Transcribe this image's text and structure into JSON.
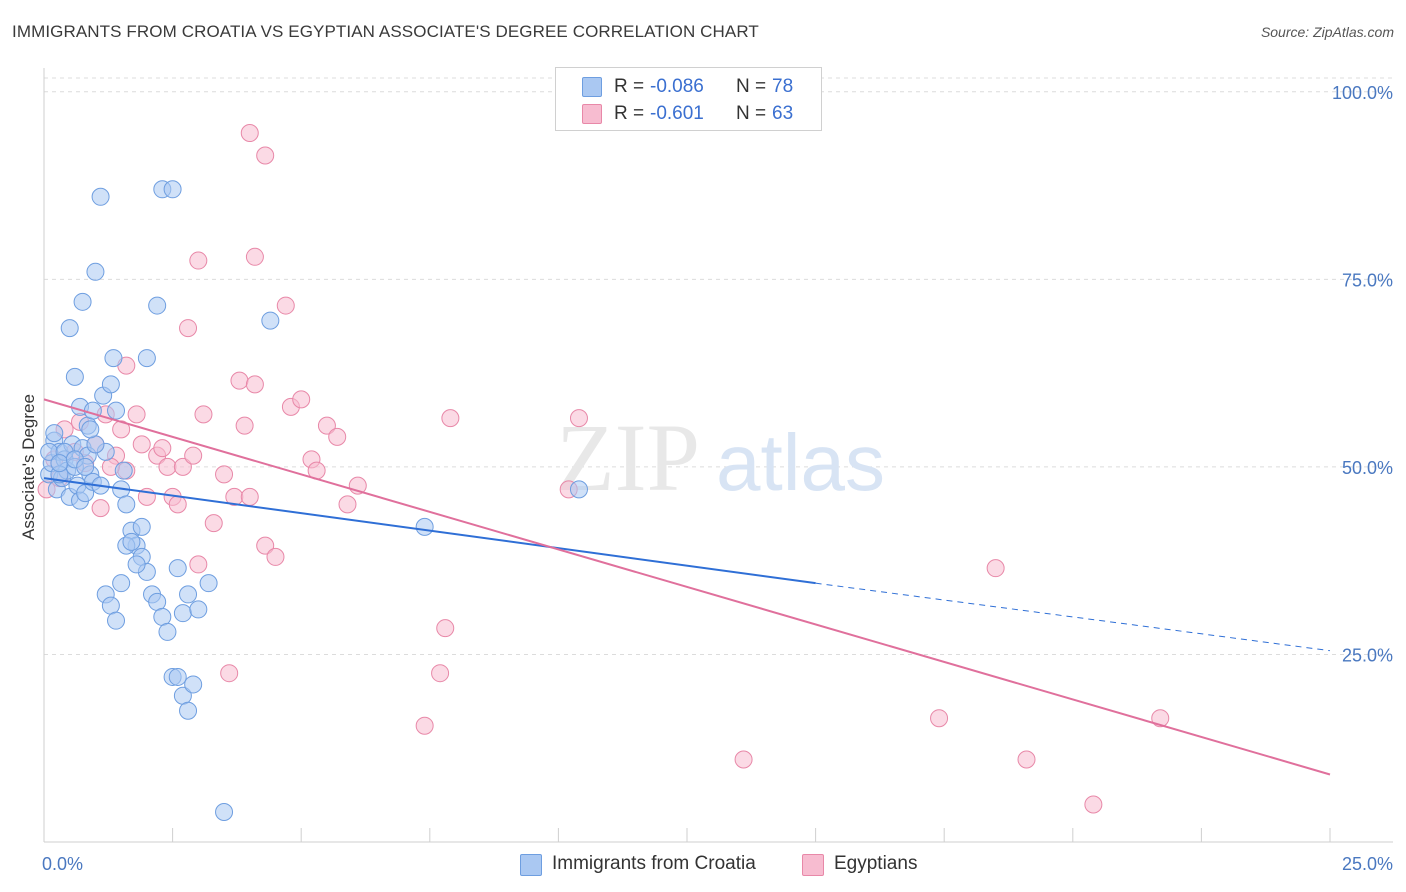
{
  "header": {
    "title": "IMMIGRANTS FROM CROATIA VS EGYPTIAN ASSOCIATE'S DEGREE CORRELATION CHART",
    "source": "Source: ZipAtlas.com"
  },
  "watermark": {
    "zip": "ZIP",
    "atlas": "atlas"
  },
  "legend": {
    "rows": [
      {
        "r_label": "R =",
        "r_value": "-0.086",
        "n_label": "N =",
        "n_value": "78",
        "color": "#aac8f2",
        "border": "#6e9ee0"
      },
      {
        "r_label": "R =",
        "r_value": "-0.601",
        "n_label": "N =",
        "n_value": "63",
        "color": "#f7bcd0",
        "border": "#e888a8"
      }
    ]
  },
  "bottom_legend": {
    "croatia": "Immigrants from Croatia",
    "egyptians": "Egyptians"
  },
  "chart_data": {
    "type": "scatter",
    "title": "IMMIGRANTS FROM CROATIA VS EGYPTIAN ASSOCIATE'S DEGREE CORRELATION CHART",
    "xlabel": "",
    "ylabel": "Associate's Degree",
    "xlim": [
      0,
      25
    ],
    "ylim": [
      0,
      100
    ],
    "x_ticks": [
      "0.0%",
      "25.0%"
    ],
    "y_ticks": [
      "25.0%",
      "50.0%",
      "75.0%",
      "100.0%"
    ],
    "y_tick_values": [
      25,
      50,
      75,
      100
    ],
    "grid": true,
    "legend_position": "top-center",
    "series": [
      {
        "name": "Immigrants from Croatia",
        "color": "#6e9ee0",
        "fill": "#aac8f2",
        "trend": {
          "x": [
            0,
            15
          ],
          "y": [
            48.5,
            34.5
          ],
          "dashed_to": [
            25,
            25.5
          ]
        },
        "points": [
          [
            0.1,
            49
          ],
          [
            0.15,
            50.5
          ],
          [
            0.2,
            53.5
          ],
          [
            0.25,
            47
          ],
          [
            0.3,
            52
          ],
          [
            0.35,
            48.5
          ],
          [
            0.4,
            51
          ],
          [
            0.45,
            49.5
          ],
          [
            0.5,
            46
          ],
          [
            0.55,
            53
          ],
          [
            0.6,
            50
          ],
          [
            0.65,
            47.5
          ],
          [
            0.7,
            45.5
          ],
          [
            0.75,
            52.5
          ],
          [
            0.8,
            46.5
          ],
          [
            0.85,
            51.5
          ],
          [
            0.9,
            49
          ],
          [
            0.95,
            48
          ],
          [
            0.1,
            52
          ],
          [
            0.2,
            54.5
          ],
          [
            0.3,
            49
          ],
          [
            0.5,
            68.5
          ],
          [
            0.6,
            62
          ],
          [
            0.7,
            58
          ],
          [
            0.75,
            72
          ],
          [
            0.85,
            55.5
          ],
          [
            0.95,
            57.5
          ],
          [
            1.0,
            76
          ],
          [
            1.1,
            86
          ],
          [
            1.15,
            59.5
          ],
          [
            1.2,
            52
          ],
          [
            1.3,
            61
          ],
          [
            1.35,
            64.5
          ],
          [
            1.4,
            57.5
          ],
          [
            1.5,
            47
          ],
          [
            1.55,
            49.5
          ],
          [
            1.6,
            45
          ],
          [
            1.7,
            41.5
          ],
          [
            1.8,
            39.5
          ],
          [
            1.9,
            38
          ],
          [
            2.0,
            36
          ],
          [
            2.1,
            33
          ],
          [
            2.2,
            32
          ],
          [
            2.3,
            30
          ],
          [
            2.4,
            28
          ],
          [
            2.5,
            22
          ],
          [
            2.6,
            22
          ],
          [
            2.7,
            19.5
          ],
          [
            2.8,
            17.5
          ],
          [
            2.9,
            21
          ],
          [
            1.2,
            33
          ],
          [
            1.3,
            31.5
          ],
          [
            1.4,
            29.5
          ],
          [
            1.5,
            34.5
          ],
          [
            1.6,
            39.5
          ],
          [
            1.7,
            40
          ],
          [
            1.8,
            37
          ],
          [
            1.9,
            42
          ],
          [
            2.0,
            64.5
          ],
          [
            2.2,
            71.5
          ],
          [
            2.3,
            87
          ],
          [
            2.5,
            87
          ],
          [
            2.6,
            36.5
          ],
          [
            2.7,
            30.5
          ],
          [
            2.8,
            33
          ],
          [
            3.0,
            31
          ],
          [
            3.2,
            34.5
          ],
          [
            3.5,
            4
          ],
          [
            4.4,
            69.5
          ],
          [
            7.4,
            42
          ],
          [
            10.4,
            47
          ],
          [
            0.4,
            52
          ],
          [
            0.3,
            50.5
          ],
          [
            0.6,
            51
          ],
          [
            1.0,
            53
          ],
          [
            1.1,
            47.5
          ],
          [
            0.9,
            55
          ],
          [
            0.8,
            50
          ]
        ]
      },
      {
        "name": "Egyptians",
        "color": "#e888a8",
        "fill": "#f7bcd0",
        "trend": {
          "x": [
            0,
            25
          ],
          "y": [
            59,
            9
          ]
        },
        "points": [
          [
            0.05,
            47
          ],
          [
            0.2,
            51
          ],
          [
            0.4,
            55
          ],
          [
            0.6,
            52
          ],
          [
            0.8,
            50.5
          ],
          [
            1.0,
            53
          ],
          [
            1.2,
            57
          ],
          [
            1.4,
            51.5
          ],
          [
            1.5,
            55
          ],
          [
            1.6,
            49.5
          ],
          [
            1.8,
            57
          ],
          [
            1.9,
            53
          ],
          [
            2.0,
            46
          ],
          [
            2.2,
            51.5
          ],
          [
            2.4,
            50
          ],
          [
            2.5,
            46
          ],
          [
            2.6,
            45
          ],
          [
            2.7,
            50
          ],
          [
            2.8,
            68.5
          ],
          [
            2.9,
            51.5
          ],
          [
            3.0,
            37
          ],
          [
            3.1,
            57
          ],
          [
            3.3,
            42.5
          ],
          [
            3.5,
            49
          ],
          [
            3.7,
            46
          ],
          [
            3.8,
            61.5
          ],
          [
            3.9,
            55.5
          ],
          [
            4.0,
            46
          ],
          [
            4.1,
            61
          ],
          [
            4.3,
            39.5
          ],
          [
            4.5,
            38
          ],
          [
            4.7,
            71.5
          ],
          [
            4.8,
            58
          ],
          [
            5.0,
            59
          ],
          [
            5.2,
            51
          ],
          [
            5.3,
            49.5
          ],
          [
            5.5,
            55.5
          ],
          [
            5.7,
            54
          ],
          [
            5.9,
            45
          ],
          [
            6.1,
            47.5
          ],
          [
            3.0,
            77.5
          ],
          [
            4.1,
            78
          ],
          [
            4.0,
            94.5
          ],
          [
            4.3,
            91.5
          ],
          [
            1.6,
            63.5
          ],
          [
            3.6,
            22.5
          ],
          [
            7.4,
            15.5
          ],
          [
            7.7,
            22.5
          ],
          [
            7.8,
            28.5
          ],
          [
            7.9,
            56.5
          ],
          [
            10.2,
            47
          ],
          [
            10.4,
            56.5
          ],
          [
            13.6,
            11
          ],
          [
            17.4,
            16.5
          ],
          [
            18.5,
            36.5
          ],
          [
            19.1,
            11
          ],
          [
            20.4,
            5
          ],
          [
            21.7,
            16.5
          ],
          [
            1.1,
            44.5
          ],
          [
            2.3,
            52.5
          ],
          [
            0.7,
            56
          ],
          [
            0.3,
            48.5
          ],
          [
            1.3,
            50
          ]
        ]
      }
    ]
  }
}
